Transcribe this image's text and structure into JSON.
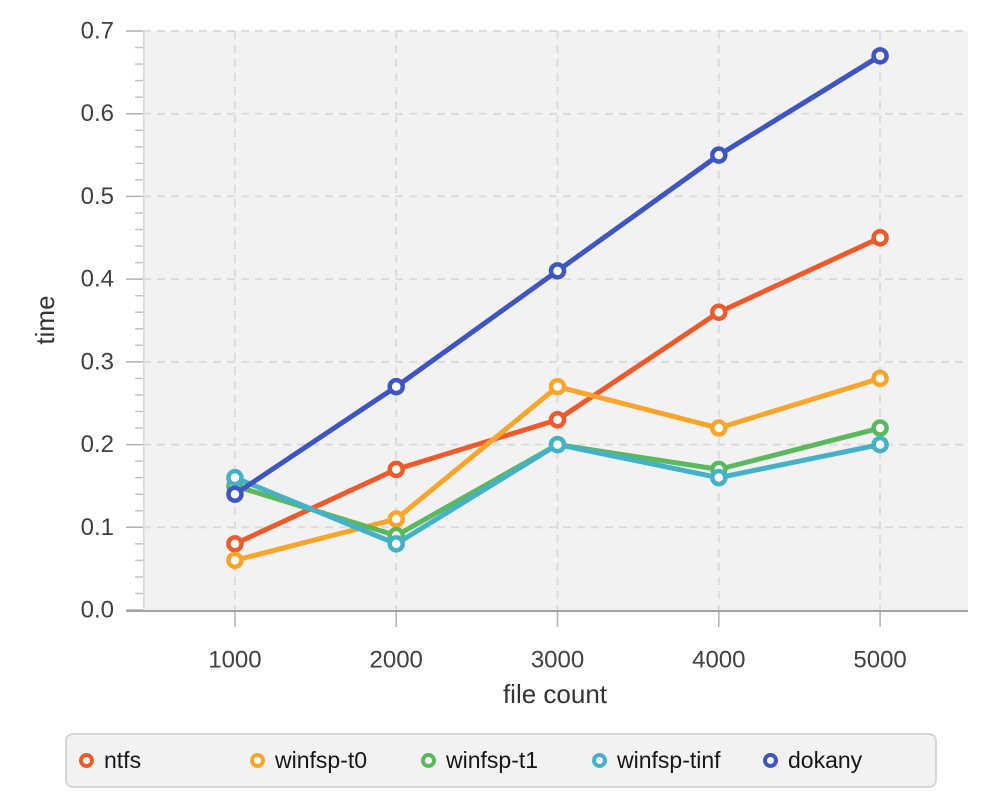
{
  "chart_data": {
    "type": "line",
    "x": [
      1000,
      2000,
      3000,
      4000,
      5000
    ],
    "series": [
      {
        "name": "ntfs",
        "color": "#ee5a2b",
        "values": [
          0.08,
          0.17,
          0.23,
          0.36,
          0.45
        ]
      },
      {
        "name": "winfsp-t0",
        "color": "#f9a42a",
        "values": [
          0.06,
          0.11,
          0.27,
          0.22,
          0.28
        ]
      },
      {
        "name": "winfsp-t1",
        "color": "#5bb85d",
        "values": [
          0.15,
          0.09,
          0.2,
          0.17,
          0.22
        ]
      },
      {
        "name": "winfsp-tinf",
        "color": "#45b1c8",
        "values": [
          0.16,
          0.08,
          0.2,
          0.16,
          0.2
        ]
      },
      {
        "name": "dokany",
        "color": "#3f55c2",
        "values": [
          0.14,
          0.27,
          0.41,
          0.55,
          0.67
        ]
      }
    ],
    "title": "",
    "xlabel": "file count",
    "ylabel": "time",
    "xticks": [
      1000,
      2000,
      3000,
      4000,
      5000
    ],
    "yticks": [
      0.0,
      0.1,
      0.2,
      0.3,
      0.4,
      0.5,
      0.6,
      0.7
    ],
    "xlim": [
      430,
      5545
    ],
    "ylim": [
      0.0,
      0.7
    ],
    "y_minor_tick_step": 0.02,
    "grid": "dashed-major",
    "legend_position": "bottom",
    "marker": "open-circle",
    "panel_bg": "#f2f2f2",
    "grid_color": "#dcdcdc",
    "tick_color": "#b0b0b0",
    "axis_line_color": "#a3a3a3",
    "tick_label_color": "#404040",
    "axis_label_color": "#333333"
  }
}
